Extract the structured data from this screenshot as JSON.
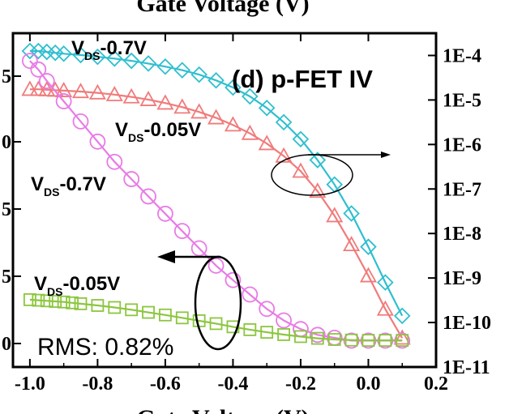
{
  "chart_data": {
    "type": "scatter",
    "panel_label": "(d) p-FET IV",
    "top_axis_label": "Gate Voltage (V)",
    "bottom_axis_label": "Gate Voltage (V)",
    "x_ticks": [
      "-1.0",
      "-0.8",
      "-0.6",
      "-0.4",
      "-0.2",
      "0.0",
      "0.2"
    ],
    "xlim": [
      -1.05,
      0.2
    ],
    "left_y_ticks": [
      "5",
      "0",
      "5",
      "5",
      "0"
    ],
    "right_y_ticks": [
      "1E-4",
      "1E-5",
      "1E-6",
      "1E-7",
      "1E-8",
      "1E-9",
      "1E-10",
      "1E-11"
    ],
    "right_ylim_log10": [
      -11,
      -3.5
    ],
    "rms_text": "RMS: 0.82%",
    "vds_high": "-0.7V",
    "vds_low": "-0.05V",
    "vds_symbol": "V",
    "vds_subscript": "DS",
    "series": [
      {
        "marker": "diamond",
        "axis": "right-log",
        "color": "#2fbfcf",
        "label_ref": "vds_high",
        "x": [
          -1.0,
          -0.975,
          -0.95,
          -0.925,
          -0.9,
          -0.85,
          -0.8,
          -0.75,
          -0.7,
          -0.65,
          -0.6,
          -0.55,
          -0.5,
          -0.45,
          -0.4,
          -0.35,
          -0.3,
          -0.25,
          -0.2,
          -0.15,
          -0.1,
          -0.05,
          0.0,
          0.05,
          0.1
        ],
        "y_log10": [
          -3.9,
          -3.9,
          -3.92,
          -3.94,
          -3.96,
          -3.99,
          -4.03,
          -4.07,
          -4.12,
          -4.18,
          -4.25,
          -4.33,
          -4.43,
          -4.56,
          -4.72,
          -4.92,
          -5.18,
          -5.5,
          -5.88,
          -6.35,
          -6.9,
          -7.55,
          -8.3,
          -9.1,
          -9.85
        ]
      },
      {
        "marker": "triangle",
        "axis": "right-log",
        "color": "#f07b7b",
        "label_ref": "vds_low",
        "x": [
          -1.0,
          -0.975,
          -0.95,
          -0.925,
          -0.9,
          -0.85,
          -0.8,
          -0.75,
          -0.7,
          -0.65,
          -0.6,
          -0.55,
          -0.5,
          -0.45,
          -0.4,
          -0.35,
          -0.3,
          -0.25,
          -0.2,
          -0.15,
          -0.1,
          -0.05,
          0.0,
          0.05,
          0.1
        ],
        "y_log10": [
          -4.76,
          -4.76,
          -4.77,
          -4.78,
          -4.79,
          -4.81,
          -4.84,
          -4.88,
          -4.93,
          -4.99,
          -5.07,
          -5.16,
          -5.27,
          -5.4,
          -5.56,
          -5.75,
          -5.98,
          -6.26,
          -6.6,
          -7.05,
          -7.6,
          -8.25,
          -8.95,
          -9.7,
          -10.35
        ]
      },
      {
        "marker": "circle",
        "axis": "left-linear",
        "color": "#e87be6",
        "label_ref": "vds_high",
        "x": [
          -1.0,
          -0.975,
          -0.95,
          -0.9,
          -0.85,
          -0.8,
          -0.75,
          -0.7,
          -0.65,
          -0.6,
          -0.55,
          -0.5,
          -0.45,
          -0.4,
          -0.35,
          -0.3,
          -0.25,
          -0.2,
          -0.15,
          -0.1,
          -0.05,
          0.0,
          0.05,
          0.1
        ],
        "y_frac": [
          0.98,
          0.95,
          0.91,
          0.84,
          0.77,
          0.7,
          0.63,
          0.57,
          0.51,
          0.45,
          0.39,
          0.33,
          0.27,
          0.22,
          0.17,
          0.12,
          0.08,
          0.05,
          0.03,
          0.02,
          0.01,
          0.01,
          0.01,
          0.01
        ]
      },
      {
        "marker": "square",
        "axis": "left-linear",
        "color": "#8cc63f",
        "label_ref": "vds_low",
        "x": [
          -1.0,
          -0.975,
          -0.95,
          -0.925,
          -0.9,
          -0.875,
          -0.85,
          -0.8,
          -0.75,
          -0.7,
          -0.65,
          -0.6,
          -0.55,
          -0.5,
          -0.45,
          -0.4,
          -0.35,
          -0.3,
          -0.25,
          -0.2,
          -0.15,
          -0.1,
          -0.05,
          0.0,
          0.05,
          0.1
        ],
        "y_frac": [
          0.152,
          0.15,
          0.148,
          0.146,
          0.144,
          0.141,
          0.138,
          0.132,
          0.125,
          0.117,
          0.108,
          0.099,
          0.089,
          0.079,
          0.069,
          0.058,
          0.048,
          0.039,
          0.031,
          0.024,
          0.018,
          0.014,
          0.012,
          0.011,
          0.011,
          0.011
        ]
      }
    ]
  }
}
